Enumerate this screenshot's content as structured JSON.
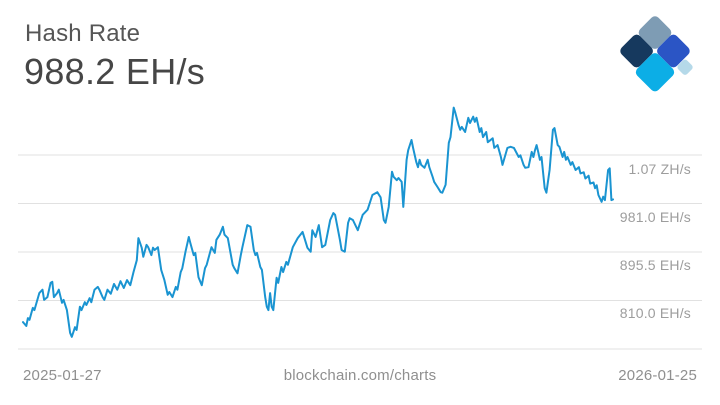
{
  "header": {
    "title": "Hash Rate",
    "current_value": "988.2 EH/s"
  },
  "footer": {
    "start_date": "2025-01-27",
    "credit": "blockchain.com/charts",
    "end_date": "2026-01-25"
  },
  "y_axis": {
    "ticks": [
      {
        "label": "1.07 ZH/s",
        "value": 1066.5
      },
      {
        "label": "981.0 EH/s",
        "value": 981
      },
      {
        "label": "895.5 EH/s",
        "value": 895.5
      },
      {
        "label": "810.0 EH/s",
        "value": 810
      }
    ],
    "gridline_values": [
      1066.5,
      981,
      895.5,
      810,
      724.5
    ],
    "grid_color": "#E1E1E1"
  },
  "logo": {
    "name": "blockchain-logo",
    "colors": {
      "slate": "#7E9CB4",
      "navy": "#16395E",
      "royal": "#2B55C5",
      "cyan": "#0CAEE6",
      "pale": "#B5D9E9"
    }
  },
  "chart_data": {
    "type": "line",
    "title": "Hash Rate",
    "unit": "EH/s",
    "current_value_ehs": 988.2,
    "x_start": "2025-01-27",
    "x_end": "2026-01-25",
    "x_unit": "days since 2025-01-27",
    "x_range_days": 363,
    "ylim": [
      724.5,
      1170
    ],
    "y_ticks": [
      "1.07 ZH/s",
      "981.0 EH/s",
      "895.5 EH/s",
      "810.0 EH/s"
    ],
    "grid": true,
    "legend": false,
    "line_color": "#1A94D1",
    "points": [
      [
        0,
        772
      ],
      [
        2,
        765
      ],
      [
        3,
        779
      ],
      [
        4,
        776
      ],
      [
        6,
        797
      ],
      [
        7,
        793
      ],
      [
        10,
        823
      ],
      [
        12,
        829
      ],
      [
        13,
        811
      ],
      [
        15,
        816
      ],
      [
        17,
        841
      ],
      [
        18,
        843
      ],
      [
        19,
        816
      ],
      [
        21,
        823
      ],
      [
        22,
        829
      ],
      [
        24,
        806
      ],
      [
        25,
        811
      ],
      [
        27,
        793
      ],
      [
        29,
        753
      ],
      [
        30,
        746
      ],
      [
        32,
        763
      ],
      [
        33,
        758
      ],
      [
        35,
        799
      ],
      [
        36,
        793
      ],
      [
        38,
        807
      ],
      [
        39,
        802
      ],
      [
        41,
        814
      ],
      [
        42,
        807
      ],
      [
        44,
        829
      ],
      [
        46,
        834
      ],
      [
        47,
        829
      ],
      [
        49,
        816
      ],
      [
        50,
        811
      ],
      [
        52,
        829
      ],
      [
        54,
        822
      ],
      [
        56,
        839
      ],
      [
        58,
        829
      ],
      [
        60,
        844
      ],
      [
        62,
        832
      ],
      [
        64,
        846
      ],
      [
        66,
        837
      ],
      [
        68,
        860
      ],
      [
        70,
        881
      ],
      [
        71,
        920
      ],
      [
        73,
        903
      ],
      [
        74,
        887
      ],
      [
        76,
        908
      ],
      [
        77,
        904
      ],
      [
        79,
        890
      ],
      [
        80,
        903
      ],
      [
        81,
        899
      ],
      [
        83,
        904
      ],
      [
        85,
        864
      ],
      [
        87,
        846
      ],
      [
        89,
        820
      ],
      [
        90,
        825
      ],
      [
        92,
        816
      ],
      [
        94,
        834
      ],
      [
        95,
        829
      ],
      [
        97,
        860
      ],
      [
        98,
        867
      ],
      [
        100,
        896
      ],
      [
        102,
        922
      ],
      [
        103,
        911
      ],
      [
        105,
        890
      ],
      [
        106,
        894
      ],
      [
        108,
        851
      ],
      [
        110,
        837
      ],
      [
        112,
        867
      ],
      [
        113,
        873
      ],
      [
        115,
        894
      ],
      [
        116,
        904
      ],
      [
        118,
        894
      ],
      [
        119,
        917
      ],
      [
        121,
        926
      ],
      [
        123,
        940
      ],
      [
        124,
        926
      ],
      [
        126,
        920
      ],
      [
        129,
        873
      ],
      [
        130,
        867
      ],
      [
        132,
        858
      ],
      [
        134,
        890
      ],
      [
        135,
        904
      ],
      [
        138,
        943
      ],
      [
        140,
        940
      ],
      [
        142,
        899
      ],
      [
        143,
        890
      ],
      [
        144,
        894
      ],
      [
        146,
        869
      ],
      [
        147,
        864
      ],
      [
        149,
        816
      ],
      [
        150,
        799
      ],
      [
        151,
        793
      ],
      [
        152,
        823
      ],
      [
        153,
        799
      ],
      [
        154,
        793
      ],
      [
        156,
        850
      ],
      [
        157,
        841
      ],
      [
        159,
        869
      ],
      [
        160,
        860
      ],
      [
        162,
        878
      ],
      [
        163,
        873
      ],
      [
        166,
        904
      ],
      [
        169,
        920
      ],
      [
        172,
        931
      ],
      [
        175,
        903
      ],
      [
        177,
        896
      ],
      [
        178,
        934
      ],
      [
        180,
        922
      ],
      [
        182,
        943
      ],
      [
        184,
        904
      ],
      [
        186,
        908
      ],
      [
        189,
        952
      ],
      [
        191,
        964
      ],
      [
        192,
        961
      ],
      [
        195,
        917
      ],
      [
        196,
        899
      ],
      [
        198,
        896
      ],
      [
        200,
        947
      ],
      [
        201,
        955
      ],
      [
        203,
        952
      ],
      [
        206,
        934
      ],
      [
        209,
        961
      ],
      [
        212,
        970
      ],
      [
        215,
        996
      ],
      [
        218,
        1001
      ],
      [
        220,
        992
      ],
      [
        222,
        952
      ],
      [
        223,
        947
      ],
      [
        225,
        975
      ],
      [
        227,
        1037
      ],
      [
        228,
        1028
      ],
      [
        230,
        1022
      ],
      [
        231,
        1026
      ],
      [
        233,
        1019
      ],
      [
        234,
        975
      ],
      [
        236,
        1058
      ],
      [
        237,
        1075
      ],
      [
        239,
        1093
      ],
      [
        240,
        1079
      ],
      [
        242,
        1054
      ],
      [
        243,
        1045
      ],
      [
        244,
        1058
      ],
      [
        245,
        1049
      ],
      [
        247,
        1044
      ],
      [
        249,
        1058
      ],
      [
        250,
        1045
      ],
      [
        252,
        1028
      ],
      [
        253,
        1019
      ],
      [
        255,
        1010
      ],
      [
        257,
        1001
      ],
      [
        258,
        1000
      ],
      [
        260,
        1014
      ],
      [
        262,
        1088
      ],
      [
        263,
        1098
      ],
      [
        265,
        1150
      ],
      [
        266,
        1141
      ],
      [
        268,
        1119
      ],
      [
        269,
        1111
      ],
      [
        270,
        1116
      ],
      [
        272,
        1107
      ],
      [
        274,
        1132
      ],
      [
        275,
        1123
      ],
      [
        277,
        1134
      ],
      [
        278,
        1125
      ],
      [
        279,
        1132
      ],
      [
        281,
        1107
      ],
      [
        282,
        1114
      ],
      [
        283,
        1098
      ],
      [
        285,
        1107
      ],
      [
        286,
        1089
      ],
      [
        289,
        1096
      ],
      [
        290,
        1079
      ],
      [
        292,
        1084
      ],
      [
        294,
        1063
      ],
      [
        295,
        1049
      ],
      [
        298,
        1079
      ],
      [
        300,
        1081
      ],
      [
        302,
        1079
      ],
      [
        305,
        1063
      ],
      [
        306,
        1066
      ],
      [
        308,
        1049
      ],
      [
        309,
        1044
      ],
      [
        311,
        1045
      ],
      [
        313,
        1072
      ],
      [
        314,
        1063
      ],
      [
        315,
        1075
      ],
      [
        316,
        1084
      ],
      [
        317,
        1072
      ],
      [
        318,
        1058
      ],
      [
        319,
        1063
      ],
      [
        321,
        1008
      ],
      [
        322,
        1000
      ],
      [
        324,
        1040
      ],
      [
        326,
        1111
      ],
      [
        327,
        1114
      ],
      [
        329,
        1084
      ],
      [
        330,
        1081
      ],
      [
        332,
        1063
      ],
      [
        333,
        1072
      ],
      [
        334,
        1058
      ],
      [
        335,
        1063
      ],
      [
        337,
        1049
      ],
      [
        338,
        1054
      ],
      [
        340,
        1040
      ],
      [
        342,
        1045
      ],
      [
        343,
        1034
      ],
      [
        345,
        1036
      ],
      [
        346,
        1025
      ],
      [
        348,
        1030
      ],
      [
        349,
        1016
      ],
      [
        351,
        1018
      ],
      [
        352,
        1008
      ],
      [
        353,
        1013
      ],
      [
        354,
        996
      ],
      [
        356,
        984
      ],
      [
        357,
        993
      ],
      [
        358,
        987
      ],
      [
        360,
        1040
      ],
      [
        361,
        1043
      ],
      [
        362,
        987
      ],
      [
        363,
        988.2
      ]
    ]
  }
}
